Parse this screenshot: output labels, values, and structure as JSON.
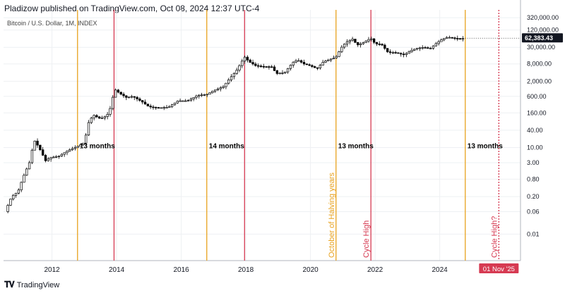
{
  "header": {
    "published": "Pladizow published on TradingView.com, Oct 08, 2024 12:37 UTC-4",
    "symbol": "Bitcoin / U.S. Dollar, 1M, INDEX"
  },
  "footer": {
    "brand": "TradingView",
    "logo": "tv-logo-icon"
  },
  "colors": {
    "orange": "#e8a21e",
    "red": "#d63a52",
    "grid": "#eef0f3",
    "text": "#131722"
  },
  "chart_data": {
    "type": "candlestick",
    "y_scale": "log",
    "xlim": [
      2010.5,
      2026.5
    ],
    "ylim": [
      0.0012,
      600000
    ],
    "x_ticks": [
      2012,
      2014,
      2016,
      2018,
      2020,
      2022,
      2024
    ],
    "y_ticks": [
      {
        "value": 320000,
        "label": "320,000.00"
      },
      {
        "value": 120000,
        "label": "120,000.00"
      },
      {
        "value": 30000,
        "label": "30,000.00"
      },
      {
        "value": 8000,
        "label": "8,000.00"
      },
      {
        "value": 2000,
        "label": "2,000.00"
      },
      {
        "value": 600,
        "label": "600.00"
      },
      {
        "value": 160,
        "label": "160.00"
      },
      {
        "value": 40,
        "label": "40.00"
      },
      {
        "value": 10,
        "label": "10.00"
      },
      {
        "value": 3,
        "label": "3.00"
      },
      {
        "value": 0.8,
        "label": "0.80"
      },
      {
        "value": 0.2,
        "label": "0.20"
      },
      {
        "value": 0.06,
        "label": "0.06"
      },
      {
        "value": 0.01,
        "label": "0.01"
      }
    ],
    "current_price": {
      "value": 62383.43,
      "label": "62,383.43"
    },
    "vertical_lines": [
      {
        "x": 2012.79,
        "color": "orange",
        "style": "solid"
      },
      {
        "x": 2013.92,
        "color": "red",
        "style": "solid"
      },
      {
        "x": 2016.79,
        "color": "orange",
        "style": "solid"
      },
      {
        "x": 2017.96,
        "color": "red",
        "style": "solid"
      },
      {
        "x": 2020.79,
        "color": "orange",
        "style": "solid",
        "label": "October of Halving years"
      },
      {
        "x": 2021.87,
        "color": "red",
        "style": "solid",
        "label": "Cycle High"
      },
      {
        "x": 2024.79,
        "color": "orange",
        "style": "solid"
      },
      {
        "x": 2025.83,
        "color": "red",
        "style": "dotted",
        "label": "Cycle High?"
      }
    ],
    "interval_labels": [
      {
        "text": "13 months",
        "x": 2012.79,
        "y": 12
      },
      {
        "text": "14 months",
        "x": 2016.79,
        "y": 12
      },
      {
        "text": "13 months",
        "x": 2020.79,
        "y": 12
      },
      {
        "text": "13 months",
        "x": 2024.79,
        "y": 12
      }
    ],
    "x_marker": {
      "x": 2025.83,
      "label": "01 Nov '25"
    },
    "price_path": [
      [
        2010.55,
        0.06
      ],
      [
        2010.75,
        0.2
      ],
      [
        2010.95,
        0.3
      ],
      [
        2011.1,
        0.9
      ],
      [
        2011.3,
        3
      ],
      [
        2011.45,
        18
      ],
      [
        2011.6,
        10
      ],
      [
        2011.8,
        3.5
      ],
      [
        2011.95,
        4.5
      ],
      [
        2012.2,
        5
      ],
      [
        2012.5,
        8
      ],
      [
        2012.79,
        11
      ],
      [
        2013.0,
        15
      ],
      [
        2013.15,
        90
      ],
      [
        2013.3,
        130
      ],
      [
        2013.5,
        100
      ],
      [
        2013.7,
        130
      ],
      [
        2013.85,
        300
      ],
      [
        2013.92,
        1100
      ],
      [
        2014.1,
        750
      ],
      [
        2014.3,
        550
      ],
      [
        2014.5,
        600
      ],
      [
        2014.8,
        380
      ],
      [
        2015.0,
        260
      ],
      [
        2015.3,
        240
      ],
      [
        2015.6,
        250
      ],
      [
        2015.9,
        420
      ],
      [
        2016.2,
        420
      ],
      [
        2016.5,
        650
      ],
      [
        2016.79,
        700
      ],
      [
        2017.0,
        950
      ],
      [
        2017.3,
        1300
      ],
      [
        2017.5,
        2500
      ],
      [
        2017.7,
        4500
      ],
      [
        2017.96,
        14000
      ],
      [
        2018.1,
        9500
      ],
      [
        2018.3,
        7000
      ],
      [
        2018.5,
        6500
      ],
      [
        2018.8,
        6300
      ],
      [
        2018.95,
        3700
      ],
      [
        2019.2,
        4000
      ],
      [
        2019.45,
        9000
      ],
      [
        2019.6,
        11000
      ],
      [
        2019.8,
        8000
      ],
      [
        2019.95,
        7200
      ],
      [
        2020.2,
        5500
      ],
      [
        2020.4,
        9500
      ],
      [
        2020.6,
        11500
      ],
      [
        2020.79,
        13800
      ],
      [
        2020.95,
        29000
      ],
      [
        2021.1,
        45000
      ],
      [
        2021.3,
        58000
      ],
      [
        2021.45,
        36000
      ],
      [
        2021.6,
        42000
      ],
      [
        2021.87,
        62000
      ],
      [
        2022.0,
        40000
      ],
      [
        2022.2,
        38000
      ],
      [
        2022.4,
        20000
      ],
      [
        2022.6,
        20000
      ],
      [
        2022.9,
        16500
      ],
      [
        2023.1,
        23000
      ],
      [
        2023.3,
        28000
      ],
      [
        2023.5,
        30000
      ],
      [
        2023.7,
        27000
      ],
      [
        2023.9,
        42000
      ],
      [
        2024.1,
        60000
      ],
      [
        2024.25,
        68000
      ],
      [
        2024.45,
        62000
      ],
      [
        2024.6,
        60000
      ],
      [
        2024.79,
        62383
      ]
    ]
  }
}
